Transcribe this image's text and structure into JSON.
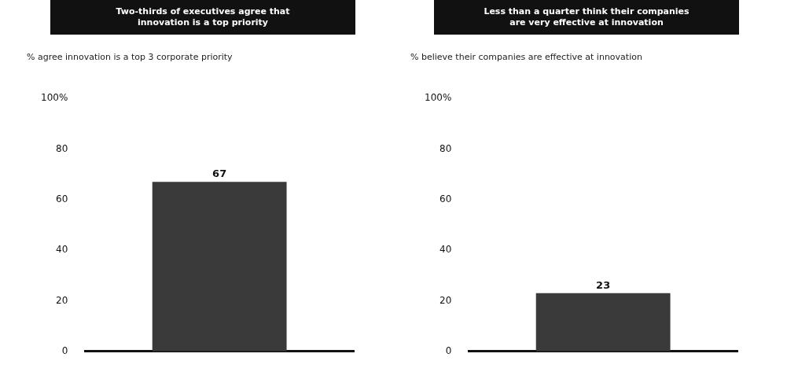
{
  "chart_data": [
    {
      "type": "bar",
      "title": "Two-thirds of executives agree that\ninnovation is a top priority",
      "subtitle": "% agree innovation is a top 3 corporate priority",
      "categories": [
        null
      ],
      "values": [
        67
      ],
      "color": "#3a3a3a",
      "ylim": [
        0,
        100
      ],
      "yticks": [
        0,
        20,
        40,
        60,
        80,
        {
          "value": 100,
          "label": "100%"
        }
      ],
      "data_labels": true,
      "grid": false,
      "legend": false,
      "tick_labels": "y"
    },
    {
      "type": "bar",
      "title": "Less than a quarter think their companies\nare very effective at innovation",
      "subtitle": "% believe their companies are effective at innovation",
      "categories": [
        null
      ],
      "values": [
        23
      ],
      "color": "#3a3a3a",
      "ylim": [
        0,
        100
      ],
      "yticks": [
        0,
        20,
        40,
        60,
        80,
        {
          "value": 100,
          "label": "100%"
        }
      ],
      "data_labels": true,
      "grid": false,
      "legend": false,
      "tick_labels": "y"
    }
  ]
}
